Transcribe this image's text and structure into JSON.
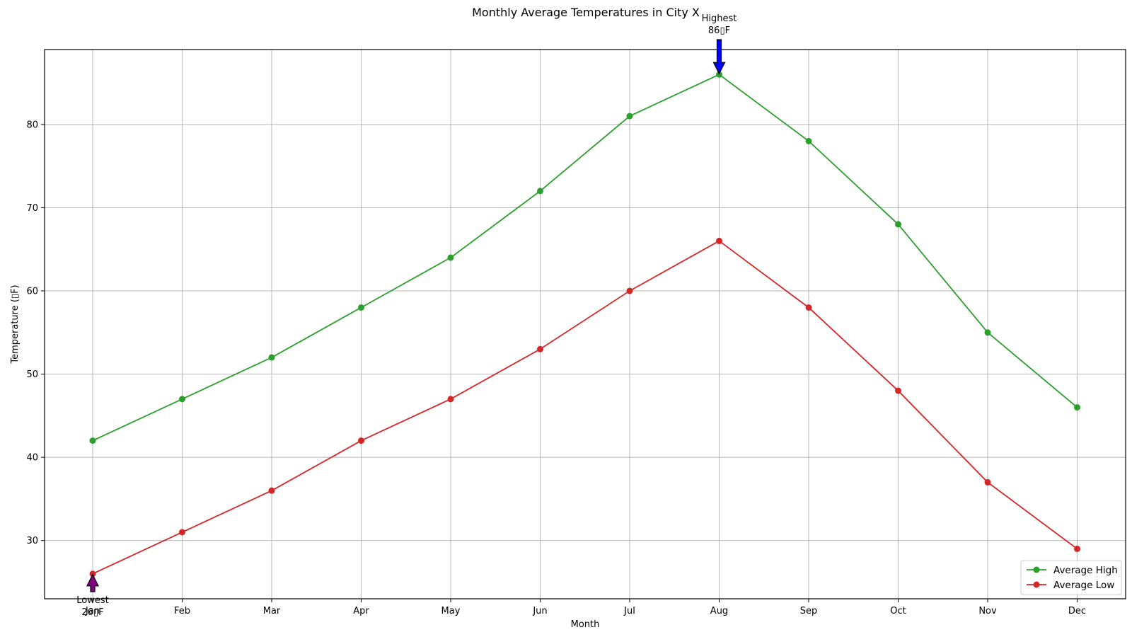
{
  "chart_data": {
    "type": "line",
    "title": "Monthly Average Temperatures in City X",
    "xlabel": "Month",
    "ylabel": "Temperature (▯F)",
    "categories": [
      "Jan",
      "Feb",
      "Mar",
      "Apr",
      "May",
      "Jun",
      "Jul",
      "Aug",
      "Sep",
      "Oct",
      "Nov",
      "Dec"
    ],
    "ylim": [
      23,
      89
    ],
    "yticks": [
      30,
      40,
      50,
      60,
      70,
      80
    ],
    "grid": true,
    "legend_position": "bottom-right",
    "series": [
      {
        "name": "Average High",
        "color": "#2ca02c",
        "marker": "circle",
        "values": [
          42,
          47,
          52,
          58,
          64,
          72,
          81,
          86,
          78,
          68,
          55,
          46
        ]
      },
      {
        "name": "Average Low",
        "color": "#d62728",
        "marker": "circle",
        "values": [
          26,
          31,
          36,
          42,
          47,
          53,
          60,
          66,
          58,
          48,
          37,
          29
        ]
      }
    ],
    "annotations": [
      {
        "id": "highest",
        "label": "Highest",
        "value_text": "86▯F",
        "category": "Aug",
        "value": 86,
        "arrow_color": "#0000ff",
        "direction": "down"
      },
      {
        "id": "lowest",
        "label": "Lowest",
        "value_text": "26▯F",
        "category": "Jan",
        "value": 26,
        "arrow_color": "#800080",
        "direction": "up"
      }
    ]
  }
}
